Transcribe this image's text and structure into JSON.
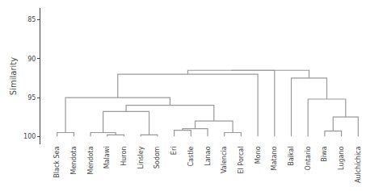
{
  "chart_data": {
    "type": "dendrogram",
    "ylabel": "Similarity",
    "categories": [
      "Black Sea",
      "Mendota",
      "Mendota",
      "Malawi",
      "Huron",
      "Linsley",
      "Sodom",
      "Eri",
      "Castle",
      "Lanao",
      "Valencia",
      "El Porcal",
      "Mono",
      "Matano",
      "Baikal",
      "Ontario",
      "Biwa",
      "Lugano",
      "Aulchichica"
    ],
    "baseline": 100,
    "merges": [
      {
        "pair": [
          16,
          17
        ],
        "height": 99.3
      },
      {
        "pair": [
          19,
          18
        ],
        "height": 97.5
      },
      {
        "pair": [
          15,
          20
        ],
        "height": 95.2
      },
      {
        "pair": [
          14,
          21
        ],
        "height": 92.5
      },
      {
        "pair": [
          0,
          1
        ],
        "height": 99.5
      },
      {
        "pair": [
          3,
          4
        ],
        "height": 99.8
      },
      {
        "pair": [
          2,
          24
        ],
        "height": 99.5
      },
      {
        "pair": [
          5,
          6
        ],
        "height": 99.8
      },
      {
        "pair": [
          25,
          26
        ],
        "height": 96.8
      },
      {
        "pair": [
          7,
          8
        ],
        "height": 99.2
      },
      {
        "pair": [
          28,
          9
        ],
        "height": 99.0
      },
      {
        "pair": [
          10,
          11
        ],
        "height": 99.5
      },
      {
        "pair": [
          29,
          30
        ],
        "height": 98.0
      },
      {
        "pair": [
          27,
          31
        ],
        "height": 96.0
      },
      {
        "pair": [
          23,
          32
        ],
        "height": 95.0
      },
      {
        "pair": [
          33,
          12
        ],
        "height": 92.0
      },
      {
        "pair": [
          34,
          13
        ],
        "height": 91.5
      },
      {
        "pair": [
          35,
          22
        ],
        "height": 91.5
      }
    ],
    "ylim": [
      101,
      83.5
    ],
    "yticks": [
      85,
      90,
      95,
      100
    ],
    "grid": false,
    "color": "#999999"
  }
}
